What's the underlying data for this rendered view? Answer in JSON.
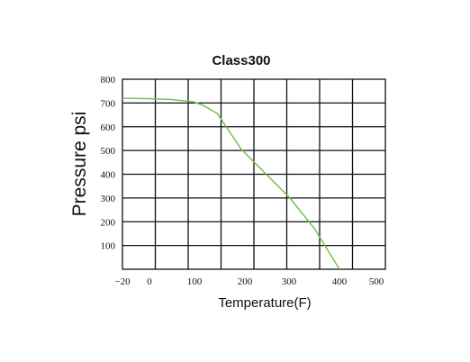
{
  "chart_data": {
    "type": "line",
    "title": "Class300",
    "xlabel": "Temperature(F)",
    "ylabel": "Pressure psi",
    "x_ticks": [
      "−20",
      "0",
      "100",
      "200",
      "300",
      "400",
      "500"
    ],
    "y_ticks": [
      "100",
      "200",
      "300",
      "400",
      "500",
      "600",
      "700",
      "800"
    ],
    "grid": true,
    "legend": "none",
    "line_color": "#6bbf4e",
    "series": [
      {
        "points": [
          {
            "x": -20,
            "y": 720
          },
          {
            "x": 0,
            "y": 718
          },
          {
            "x": 50,
            "y": 715
          },
          {
            "x": 100,
            "y": 705
          },
          {
            "x": 120,
            "y": 690
          },
          {
            "x": 150,
            "y": 655
          },
          {
            "x": 200,
            "y": 505
          },
          {
            "x": 300,
            "y": 300
          },
          {
            "x": 350,
            "y": 170
          },
          {
            "x": 400,
            "y": 0
          }
        ]
      }
    ]
  }
}
